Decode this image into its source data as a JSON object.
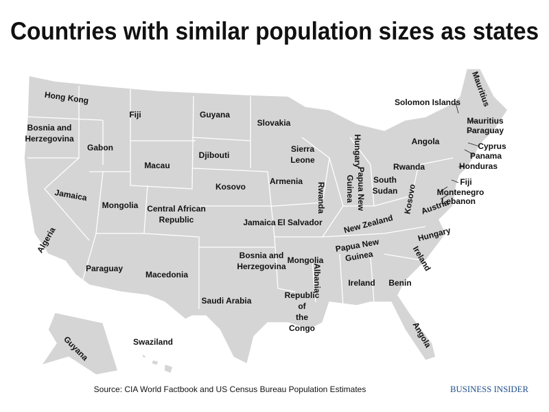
{
  "title": "Countries with similar population sizes as states",
  "labels": [
    [
      "Hong Kong"
    ],
    [
      "Fiji"
    ],
    [
      "Guyana"
    ],
    [
      "Slovakia"
    ],
    [
      "Solomon Islands"
    ],
    [
      "Mauritius"
    ],
    [
      "Mauritius"
    ],
    [
      "Paraguay"
    ],
    [
      "Bosnia and",
      "Herzegovina"
    ],
    [
      "Gabon"
    ],
    [
      "Angola"
    ],
    [
      "Cyprus"
    ],
    [
      "Panama"
    ],
    [
      "Macau"
    ],
    [
      "Djibouti"
    ],
    [
      "Sierra",
      "Leone"
    ],
    [
      "Hungary"
    ],
    [
      "Honduras"
    ],
    [
      "Rwanda"
    ],
    [
      "Jamaica"
    ],
    [
      "Kosovo"
    ],
    [
      "Armenia"
    ],
    [
      "Rwanda"
    ],
    [
      "Papua New",
      "Guinea"
    ],
    [
      "South",
      "Sudan"
    ],
    [
      "Kosovo"
    ],
    [
      "Fiji"
    ],
    [
      "Montenegro"
    ],
    [
      "Lebanon"
    ],
    [
      "Mongolia"
    ],
    [
      "Central African",
      "Republic"
    ],
    [
      "Austria"
    ],
    [
      "Algeria"
    ],
    [
      "Jamaica"
    ],
    [
      "El Salvador"
    ],
    [
      "New Zealand"
    ],
    [
      "Hungary"
    ],
    [
      "Papua New",
      "Guinea"
    ],
    [
      "Bosnia and",
      "Herzegovina"
    ],
    [
      "Mongolia"
    ],
    [
      "Paraguay"
    ],
    [
      "Macedonia"
    ],
    [
      "Ireland"
    ],
    [
      "Albania"
    ],
    [
      "Ireland"
    ],
    [
      "Benin"
    ],
    [
      "Saudi Arabia"
    ],
    [
      "Republic",
      "of",
      "the",
      "Congo"
    ],
    [
      "Angola"
    ],
    [
      "Guyana"
    ],
    [
      "Swaziland"
    ]
  ],
  "source": "Source: CIA World Factbook and US Census Bureau Population Estimates",
  "brand": "BUSINESS INSIDER"
}
